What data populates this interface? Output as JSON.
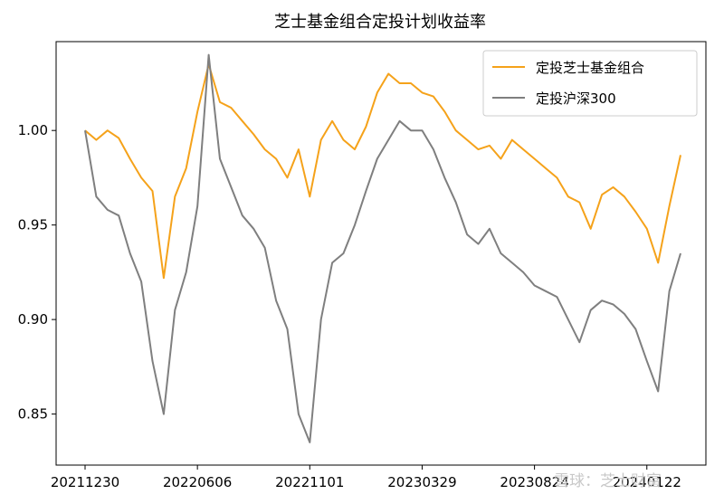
{
  "chart_data": {
    "type": "line",
    "title": "芝士基金组合定投计划收益率",
    "xlabel": "",
    "ylabel": "",
    "ylim": [
      0.823,
      1.047
    ],
    "yticks": [
      0.85,
      0.9,
      0.95,
      1.0
    ],
    "ytick_labels": [
      "0.85",
      "0.90",
      "0.95",
      "1.00"
    ],
    "xticks": [
      "20211230",
      "20220606",
      "20221101",
      "20230329",
      "20230824",
      "20240122"
    ],
    "grid": false,
    "legend_position": "top-right",
    "x": [
      "20211230",
      "20220118",
      "20220128",
      "20220217",
      "20220301",
      "20220315",
      "20220325",
      "20220411",
      "20220426",
      "20220516",
      "20220606",
      "20220620",
      "20220705",
      "20220719",
      "20220801",
      "20220815",
      "20220829",
      "20220914",
      "20220928",
      "20221018",
      "20221101",
      "20221115",
      "20221129",
      "20221213",
      "20221227",
      "20230111",
      "20230130",
      "20230213",
      "20230227",
      "20230313",
      "20230329",
      "20230412",
      "20230426",
      "20230515",
      "20230529",
      "20230613",
      "20230628",
      "20230712",
      "20230726",
      "20230809",
      "20230824",
      "20230907",
      "20230921",
      "20231011",
      "20231025",
      "20231108",
      "20231122",
      "20231206",
      "20231220",
      "20240104",
      "20240122",
      "20240205",
      "20240226",
      "20240311"
    ],
    "series": [
      {
        "name": "定投芝士基金组合",
        "color": "#f5a21a",
        "values": [
          1.0,
          0.995,
          1.0,
          0.996,
          0.985,
          0.975,
          0.968,
          0.922,
          0.965,
          0.98,
          1.01,
          1.035,
          1.015,
          1.012,
          1.005,
          0.998,
          0.99,
          0.985,
          0.975,
          0.99,
          0.965,
          0.995,
          1.005,
          0.995,
          0.99,
          1.002,
          1.02,
          1.03,
          1.025,
          1.025,
          1.02,
          1.018,
          1.01,
          1.0,
          0.995,
          0.99,
          0.992,
          0.985,
          0.995,
          0.99,
          0.985,
          0.98,
          0.975,
          0.965,
          0.962,
          0.948,
          0.966,
          0.97,
          0.965,
          0.957,
          0.948,
          0.93,
          0.96,
          0.987
        ]
      },
      {
        "name": "定投沪深300",
        "color": "#7f7f7f",
        "values": [
          1.0,
          0.965,
          0.958,
          0.955,
          0.935,
          0.92,
          0.878,
          0.85,
          0.905,
          0.925,
          0.96,
          1.04,
          0.985,
          0.97,
          0.955,
          0.948,
          0.938,
          0.91,
          0.895,
          0.85,
          0.835,
          0.9,
          0.93,
          0.935,
          0.95,
          0.968,
          0.985,
          0.995,
          1.005,
          1.0,
          1.0,
          0.99,
          0.975,
          0.962,
          0.945,
          0.94,
          0.948,
          0.935,
          0.93,
          0.925,
          0.918,
          0.915,
          0.912,
          0.9,
          0.888,
          0.905,
          0.91,
          0.908,
          0.903,
          0.895,
          0.878,
          0.862,
          0.915,
          0.935
        ]
      }
    ]
  },
  "watermark": "雪球：芝士财富"
}
